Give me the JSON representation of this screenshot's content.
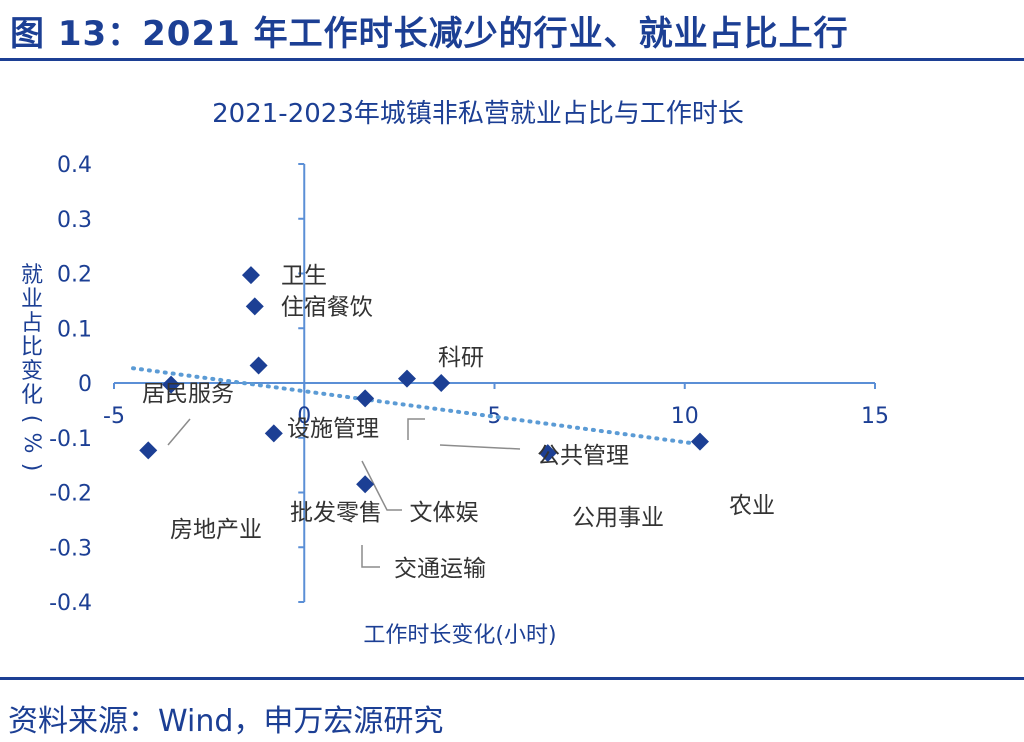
{
  "figure": {
    "title": "图 13：2021 年工作时长减少的行业、就业占比上行",
    "source": "资料来源：Wind，申万宏源研究"
  },
  "chart_data": {
    "type": "scatter",
    "title": "2021-2023年城镇非私营就业占比与工作时长",
    "xlabel": "工作时长变化(小时)",
    "ylabel": "就业占比变化(%)",
    "xlim": [
      -5,
      15
    ],
    "ylim": [
      -0.4,
      0.4
    ],
    "x_ticks": [
      "-5",
      "0",
      "5",
      "10",
      "15"
    ],
    "y_ticks": [
      "0.4",
      "0.3",
      "0.2",
      "0.1",
      "0",
      "-0.1",
      "-0.2",
      "-0.3",
      "-0.4"
    ],
    "grid": false,
    "trendline": {
      "style": "dotted",
      "x": [
        -4.5,
        10.2
      ],
      "y": [
        0.027,
        -0.11
      ]
    },
    "points": [
      {
        "label": "卫生",
        "x": -1.4,
        "y": 0.197
      },
      {
        "label": "住宿餐饮",
        "x": -1.3,
        "y": 0.14
      },
      {
        "label": "居民服务",
        "x": -3.5,
        "y": -0.003
      },
      {
        "label": "设施管理",
        "x": -1.2,
        "y": 0.032
      },
      {
        "label": "科研",
        "x": 2.7,
        "y": 0.008
      },
      {
        "label": "公共管理",
        "x": 3.6,
        "y": 0.0
      },
      {
        "label": "文体娱",
        "x": 1.6,
        "y": -0.028
      },
      {
        "label": "批发零售",
        "x": -0.8,
        "y": -0.092
      },
      {
        "label": "房地产业",
        "x": -4.1,
        "y": -0.123
      },
      {
        "label": "公用事业",
        "x": 6.4,
        "y": -0.128
      },
      {
        "label": "农业",
        "x": 10.4,
        "y": -0.107
      },
      {
        "label": "交通运输",
        "x": 1.6,
        "y": -0.185
      }
    ],
    "marker_color": "#1c3f94",
    "axis_color": "#5b8fd6",
    "label_color": "#333333"
  }
}
